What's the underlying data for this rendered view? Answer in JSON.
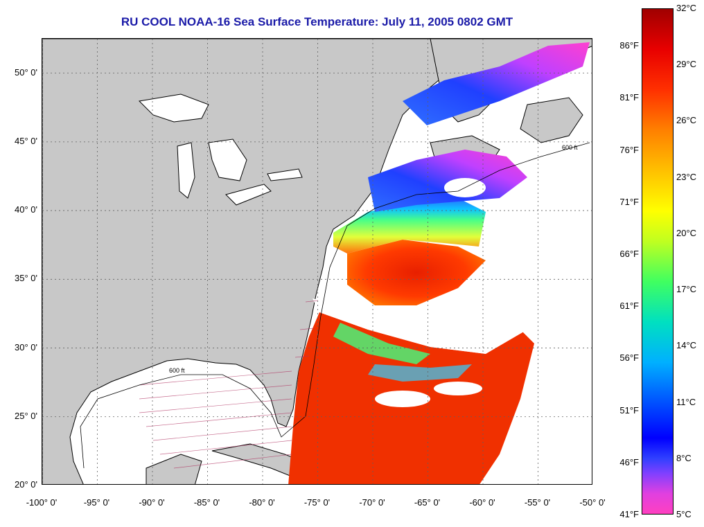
{
  "title": "RU COOL  NOAA-16  Sea Surface Temperature:  July 11, 2005 0802 GMT",
  "map": {
    "lon_range": [
      -100,
      -50
    ],
    "lat_range": [
      20,
      52.5
    ],
    "colors": {
      "land": "#c8c8c8",
      "cloud": "#ffffff",
      "coast": "#000000",
      "grid": "#606060"
    },
    "lon_ticks": [
      {
        "value": -100,
        "label": "-100° 0'"
      },
      {
        "value": -95,
        "label": "-95° 0'"
      },
      {
        "value": -90,
        "label": "-90° 0'"
      },
      {
        "value": -85,
        "label": "-85° 0'"
      },
      {
        "value": -80,
        "label": "-80° 0'"
      },
      {
        "value": -75,
        "label": "-75° 0'"
      },
      {
        "value": -70,
        "label": "-70° 0'"
      },
      {
        "value": -65,
        "label": "-65° 0'"
      },
      {
        "value": -60,
        "label": "-60° 0'"
      },
      {
        "value": -55,
        "label": "-55° 0'"
      },
      {
        "value": -50,
        "label": "-50° 0'"
      }
    ],
    "lat_ticks": [
      {
        "value": 50,
        "label": "50° 0'"
      },
      {
        "value": 45,
        "label": "45° 0'"
      },
      {
        "value": 40,
        "label": "40° 0'"
      },
      {
        "value": 35,
        "label": "35° 0'"
      },
      {
        "value": 30,
        "label": "30° 0'"
      },
      {
        "value": 25,
        "label": "25° 0'"
      },
      {
        "value": 20,
        "label": "20° 0'"
      }
    ],
    "isobath_label": "600 ft"
  },
  "colorbar": {
    "range_c": [
      5,
      32
    ],
    "celsius_labels": [
      {
        "value": 32,
        "label": "32°C"
      },
      {
        "value": 29,
        "label": "29°C"
      },
      {
        "value": 26,
        "label": "26°C"
      },
      {
        "value": 23,
        "label": "23°C"
      },
      {
        "value": 20,
        "label": "20°C"
      },
      {
        "value": 17,
        "label": "17°C"
      },
      {
        "value": 14,
        "label": "14°C"
      },
      {
        "value": 11,
        "label": "11°C"
      },
      {
        "value": 8,
        "label": "8°C"
      },
      {
        "value": 5,
        "label": "5°C"
      }
    ],
    "fahrenheit_labels": [
      {
        "value": 86,
        "label": "86°F"
      },
      {
        "value": 81,
        "label": "81°F"
      },
      {
        "value": 76,
        "label": "76°F"
      },
      {
        "value": 71,
        "label": "71°F"
      },
      {
        "value": 66,
        "label": "66°F"
      },
      {
        "value": 61,
        "label": "61°F"
      },
      {
        "value": 56,
        "label": "56°F"
      },
      {
        "value": 51,
        "label": "51°F"
      },
      {
        "value": 46,
        "label": "46°F"
      },
      {
        "value": 41,
        "label": "41°F"
      }
    ]
  }
}
